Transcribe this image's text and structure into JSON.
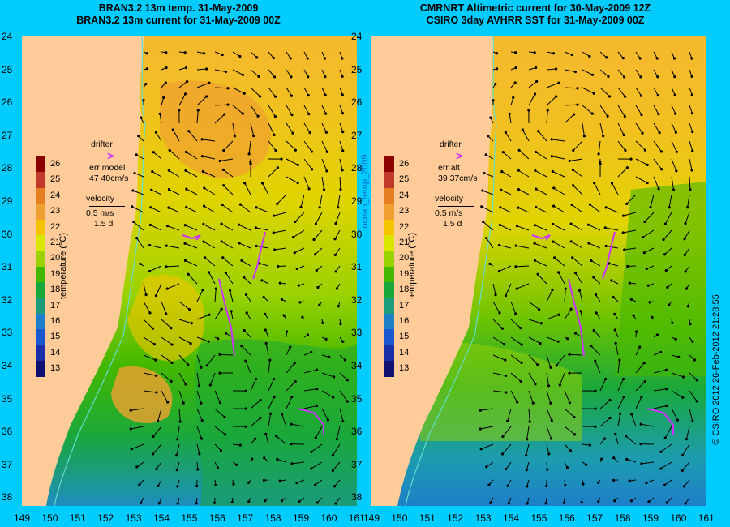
{
  "left_panel": {
    "title_line1": "BRAN3.2 13m temp. 31-May-2009",
    "title_line2": "BRAN3.2 13m current for 31-May-2009 00Z",
    "legend": {
      "drifter": "drifter",
      "err_line1": "err model",
      "err_line2": "47 40cm/s",
      "velocity": "velocity",
      "vel_scale": "0.5 m/s",
      "vel_time": "1.5 d"
    }
  },
  "right_panel": {
    "title_line1": "CMRNRT Altimetric current for 30-May-2009 12Z",
    "title_line2": "CSIRO 3day AVHRR SST for 31-May-2009 00Z",
    "legend": {
      "drifter": "drifter",
      "err_line1": "err alt",
      "err_line2": "39 37cm/s",
      "velocity": "velocity",
      "vel_scale": "0.5 m/s",
      "vel_time": "1.5 d"
    }
  },
  "side_label": "ocean_temp_2009",
  "credit": "© CSIRO 2012   26-Feb-2012 21:28:55",
  "colorbar": {
    "label": "temperature (°C)",
    "ticks": [
      "26",
      "25",
      "24",
      "23",
      "22",
      "21",
      "20",
      "19",
      "18",
      "17",
      "16",
      "15",
      "14",
      "13"
    ],
    "colors": [
      "#8b0000",
      "#c0392b",
      "#e67e22",
      "#f0a030",
      "#f5c400",
      "#d8e600",
      "#9ad200",
      "#44b800",
      "#1aa83a",
      "#1d9c7a",
      "#1e7fc8",
      "#1a56d0",
      "#1a2ea8",
      "#101070"
    ]
  },
  "axes": {
    "lat_ticks": [
      "24",
      "25",
      "26",
      "27",
      "28",
      "29",
      "30",
      "31",
      "32",
      "33",
      "34",
      "35",
      "36",
      "37",
      "38"
    ],
    "lon_ticks": [
      "149",
      "150",
      "151",
      "152",
      "153",
      "154",
      "155",
      "156",
      "157",
      "158",
      "159",
      "160",
      "161"
    ]
  },
  "colors": {
    "background": "#00ccff",
    "land": "#ffcc99",
    "drifter": "#cc33ff"
  }
}
